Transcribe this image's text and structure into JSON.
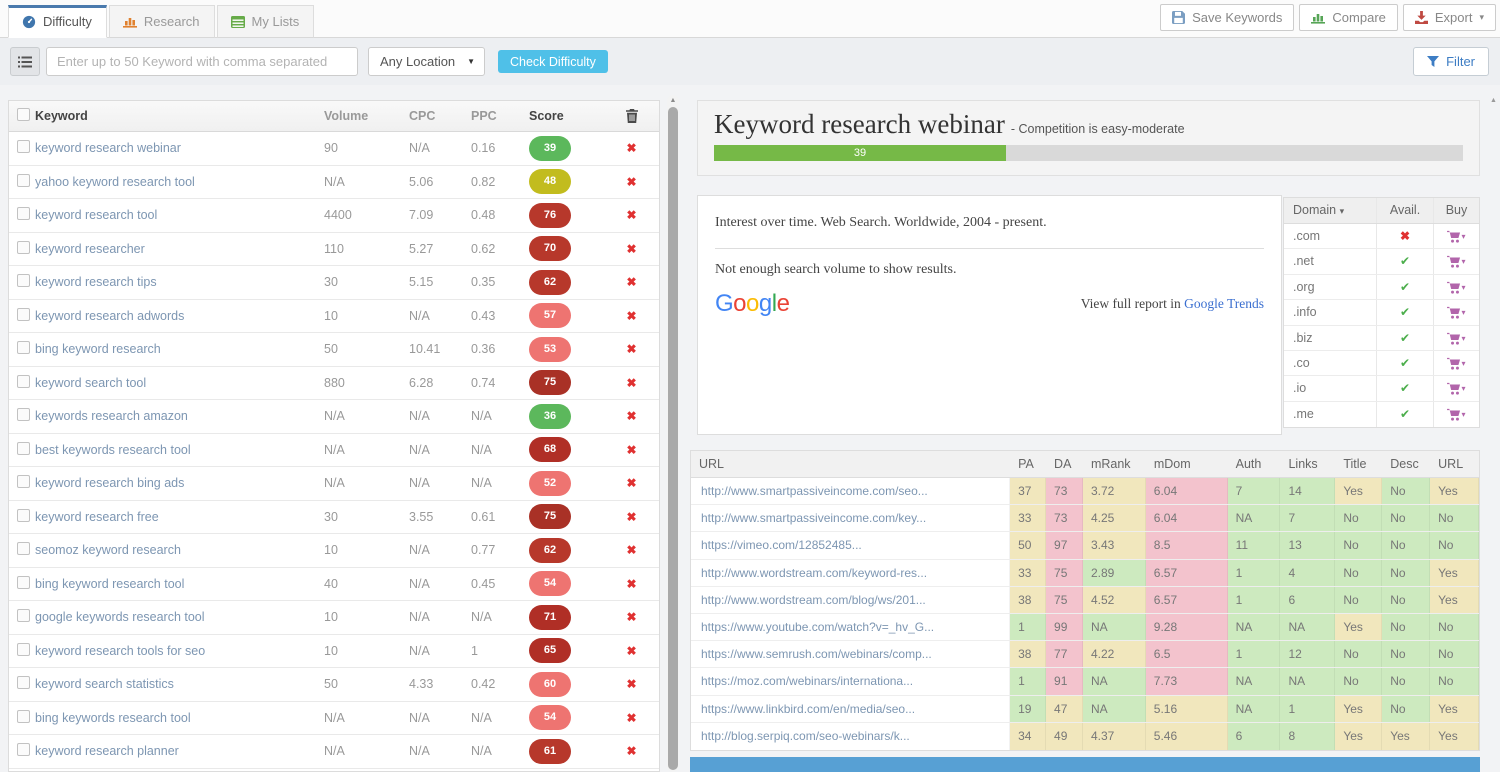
{
  "tabs": [
    {
      "label": "Difficulty",
      "icon": "gauge-icon",
      "active": true
    },
    {
      "label": "Research",
      "icon": "bar-chart-icon",
      "active": false
    },
    {
      "label": "My Lists",
      "icon": "list-icon",
      "active": false
    }
  ],
  "header_actions": {
    "save": "Save Keywords",
    "compare": "Compare",
    "export": "Export",
    "export_caret": "▾"
  },
  "toolbar": {
    "keyword_placeholder": "Enter up to 50 Keyword with comma separated",
    "location": "Any Location",
    "location_caret": "▼",
    "check_button": "Check Difficulty",
    "filter": "Filter"
  },
  "keyword_table": {
    "columns": {
      "keyword": "Keyword",
      "volume": "Volume",
      "cpc": "CPC",
      "ppc": "PPC",
      "score": "Score"
    },
    "rows": [
      {
        "keyword": "keyword research webinar",
        "volume": "90",
        "cpc": "N/A",
        "ppc": "0.16",
        "score": "39",
        "color": "#5cb85c"
      },
      {
        "keyword": "yahoo keyword research tool",
        "volume": "N/A",
        "cpc": "5.06",
        "ppc": "0.82",
        "score": "48",
        "color": "#c2bc1e"
      },
      {
        "keyword": "keyword research tool",
        "volume": "4400",
        "cpc": "7.09",
        "ppc": "0.48",
        "score": "76",
        "color": "#b7382b"
      },
      {
        "keyword": "keyword researcher",
        "volume": "110",
        "cpc": "5.27",
        "ppc": "0.62",
        "score": "70",
        "color": "#b7382b"
      },
      {
        "keyword": "keyword research tips",
        "volume": "30",
        "cpc": "5.15",
        "ppc": "0.35",
        "score": "62",
        "color": "#b7382b"
      },
      {
        "keyword": "keyword research adwords",
        "volume": "10",
        "cpc": "N/A",
        "ppc": "0.43",
        "score": "57",
        "color": "#ee7471"
      },
      {
        "keyword": "bing keyword research",
        "volume": "50",
        "cpc": "10.41",
        "ppc": "0.36",
        "score": "53",
        "color": "#ee7471"
      },
      {
        "keyword": "keyword search tool",
        "volume": "880",
        "cpc": "6.28",
        "ppc": "0.74",
        "score": "75",
        "color": "#a93126"
      },
      {
        "keyword": "keywords research amazon",
        "volume": "N/A",
        "cpc": "N/A",
        "ppc": "N/A",
        "score": "36",
        "color": "#5cb85c"
      },
      {
        "keyword": "best keywords research tool",
        "volume": "N/A",
        "cpc": "N/A",
        "ppc": "N/A",
        "score": "68",
        "color": "#b02f26"
      },
      {
        "keyword": "keyword research bing ads",
        "volume": "N/A",
        "cpc": "N/A",
        "ppc": "N/A",
        "score": "52",
        "color": "#ee7471"
      },
      {
        "keyword": "keyword research free",
        "volume": "30",
        "cpc": "3.55",
        "ppc": "0.61",
        "score": "75",
        "color": "#a93126"
      },
      {
        "keyword": "seomoz keyword research",
        "volume": "10",
        "cpc": "N/A",
        "ppc": "0.77",
        "score": "62",
        "color": "#b7382b"
      },
      {
        "keyword": "bing keyword research tool",
        "volume": "40",
        "cpc": "N/A",
        "ppc": "0.45",
        "score": "54",
        "color": "#ee7471"
      },
      {
        "keyword": "google keywords research tool",
        "volume": "10",
        "cpc": "N/A",
        "ppc": "N/A",
        "score": "71",
        "color": "#b02f26"
      },
      {
        "keyword": "keyword research tools for seo",
        "volume": "10",
        "cpc": "N/A",
        "ppc": "1",
        "score": "65",
        "color": "#b02f26"
      },
      {
        "keyword": "keyword search statistics",
        "volume": "50",
        "cpc": "4.33",
        "ppc": "0.42",
        "score": "60",
        "color": "#ee7471"
      },
      {
        "keyword": "bing keywords research tool",
        "volume": "N/A",
        "cpc": "N/A",
        "ppc": "N/A",
        "score": "54",
        "color": "#ee7471"
      },
      {
        "keyword": "keyword research planner",
        "volume": "N/A",
        "cpc": "N/A",
        "ppc": "N/A",
        "score": "61",
        "color": "#b7382b"
      }
    ]
  },
  "summary": {
    "title": "Keyword research webinar",
    "subtitle": "- Competition is easy-moderate",
    "score_label": "39",
    "bar_fill_percent": 39,
    "bar_color": "#76b947"
  },
  "trends": {
    "heading": "Interest over time. Web Search. Worldwide, 2004 - present.",
    "message": "Not enough search volume to show results.",
    "logo_letters": [
      {
        "ch": "G",
        "color": "#4285F4"
      },
      {
        "ch": "o",
        "color": "#EA4335"
      },
      {
        "ch": "o",
        "color": "#FBBC05"
      },
      {
        "ch": "g",
        "color": "#4285F4"
      },
      {
        "ch": "l",
        "color": "#34A853"
      },
      {
        "ch": "e",
        "color": "#EA4335"
      }
    ],
    "report_prefix": "View full report in",
    "report_link": "Google Trends"
  },
  "domains": {
    "columns": {
      "domain": "Domain",
      "avail": "Avail.",
      "buy": "Buy"
    },
    "sort_caret": "▾",
    "rows": [
      {
        "tld": ".com",
        "available": false
      },
      {
        "tld": ".net",
        "available": true
      },
      {
        "tld": ".org",
        "available": true
      },
      {
        "tld": ".info",
        "available": true
      },
      {
        "tld": ".biz",
        "available": true
      },
      {
        "tld": ".co",
        "available": true
      },
      {
        "tld": ".io",
        "available": true
      },
      {
        "tld": ".me",
        "available": true
      }
    ]
  },
  "url_table": {
    "columns": [
      "URL",
      "PA",
      "DA",
      "mRank",
      "mDom",
      "Auth",
      "Links",
      "Title",
      "Desc",
      "URL"
    ],
    "rows": [
      {
        "url": "http://www.smartpassiveincome.com/seo...",
        "cells": [
          {
            "v": "37",
            "c": "y"
          },
          {
            "v": "73",
            "c": "p"
          },
          {
            "v": "3.72",
            "c": "y"
          },
          {
            "v": "6.04",
            "c": "p"
          },
          {
            "v": "7",
            "c": "g"
          },
          {
            "v": "14",
            "c": "g"
          },
          {
            "v": "Yes",
            "c": "y"
          },
          {
            "v": "No",
            "c": "g"
          },
          {
            "v": "Yes",
            "c": "y"
          }
        ]
      },
      {
        "url": "http://www.smartpassiveincome.com/key...",
        "cells": [
          {
            "v": "33",
            "c": "y"
          },
          {
            "v": "73",
            "c": "p"
          },
          {
            "v": "4.25",
            "c": "y"
          },
          {
            "v": "6.04",
            "c": "p"
          },
          {
            "v": "NA",
            "c": "g"
          },
          {
            "v": "7",
            "c": "g"
          },
          {
            "v": "No",
            "c": "g"
          },
          {
            "v": "No",
            "c": "g"
          },
          {
            "v": "No",
            "c": "g"
          }
        ]
      },
      {
        "url": "https://vimeo.com/12852485...",
        "cells": [
          {
            "v": "50",
            "c": "y"
          },
          {
            "v": "97",
            "c": "p"
          },
          {
            "v": "3.43",
            "c": "y"
          },
          {
            "v": "8.5",
            "c": "p"
          },
          {
            "v": "11",
            "c": "g"
          },
          {
            "v": "13",
            "c": "g"
          },
          {
            "v": "No",
            "c": "g"
          },
          {
            "v": "No",
            "c": "g"
          },
          {
            "v": "No",
            "c": "g"
          }
        ]
      },
      {
        "url": "http://www.wordstream.com/keyword-res...",
        "cells": [
          {
            "v": "33",
            "c": "y"
          },
          {
            "v": "75",
            "c": "p"
          },
          {
            "v": "2.89",
            "c": "g"
          },
          {
            "v": "6.57",
            "c": "p"
          },
          {
            "v": "1",
            "c": "g"
          },
          {
            "v": "4",
            "c": "g"
          },
          {
            "v": "No",
            "c": "g"
          },
          {
            "v": "No",
            "c": "g"
          },
          {
            "v": "Yes",
            "c": "y"
          }
        ]
      },
      {
        "url": "http://www.wordstream.com/blog/ws/201...",
        "cells": [
          {
            "v": "38",
            "c": "y"
          },
          {
            "v": "75",
            "c": "p"
          },
          {
            "v": "4.52",
            "c": "y"
          },
          {
            "v": "6.57",
            "c": "p"
          },
          {
            "v": "1",
            "c": "g"
          },
          {
            "v": "6",
            "c": "g"
          },
          {
            "v": "No",
            "c": "g"
          },
          {
            "v": "No",
            "c": "g"
          },
          {
            "v": "Yes",
            "c": "y"
          }
        ]
      },
      {
        "url": "https://www.youtube.com/watch?v=_hv_G...",
        "cells": [
          {
            "v": "1",
            "c": "g"
          },
          {
            "v": "99",
            "c": "p"
          },
          {
            "v": "NA",
            "c": "g"
          },
          {
            "v": "9.28",
            "c": "p"
          },
          {
            "v": "NA",
            "c": "g"
          },
          {
            "v": "NA",
            "c": "g"
          },
          {
            "v": "Yes",
            "c": "y"
          },
          {
            "v": "No",
            "c": "g"
          },
          {
            "v": "No",
            "c": "g"
          }
        ]
      },
      {
        "url": "https://www.semrush.com/webinars/comp...",
        "cells": [
          {
            "v": "38",
            "c": "y"
          },
          {
            "v": "77",
            "c": "p"
          },
          {
            "v": "4.22",
            "c": "y"
          },
          {
            "v": "6.5",
            "c": "p"
          },
          {
            "v": "1",
            "c": "g"
          },
          {
            "v": "12",
            "c": "g"
          },
          {
            "v": "No",
            "c": "g"
          },
          {
            "v": "No",
            "c": "g"
          },
          {
            "v": "No",
            "c": "g"
          }
        ]
      },
      {
        "url": "https://moz.com/webinars/internationa...",
        "cells": [
          {
            "v": "1",
            "c": "g"
          },
          {
            "v": "91",
            "c": "p"
          },
          {
            "v": "NA",
            "c": "g"
          },
          {
            "v": "7.73",
            "c": "p"
          },
          {
            "v": "NA",
            "c": "g"
          },
          {
            "v": "NA",
            "c": "g"
          },
          {
            "v": "No",
            "c": "g"
          },
          {
            "v": "No",
            "c": "g"
          },
          {
            "v": "No",
            "c": "g"
          }
        ]
      },
      {
        "url": "https://www.linkbird.com/en/media/seo...",
        "cells": [
          {
            "v": "19",
            "c": "g"
          },
          {
            "v": "47",
            "c": "y"
          },
          {
            "v": "NA",
            "c": "g"
          },
          {
            "v": "5.16",
            "c": "y"
          },
          {
            "v": "NA",
            "c": "g"
          },
          {
            "v": "1",
            "c": "g"
          },
          {
            "v": "Yes",
            "c": "y"
          },
          {
            "v": "No",
            "c": "g"
          },
          {
            "v": "Yes",
            "c": "y"
          }
        ]
      },
      {
        "url": "http://blog.serpiq.com/seo-webinars/k...",
        "cells": [
          {
            "v": "34",
            "c": "y"
          },
          {
            "v": "49",
            "c": "y"
          },
          {
            "v": "4.37",
            "c": "y"
          },
          {
            "v": "5.46",
            "c": "y"
          },
          {
            "v": "6",
            "c": "g"
          },
          {
            "v": "8",
            "c": "g"
          },
          {
            "v": "Yes",
            "c": "y"
          },
          {
            "v": "Yes",
            "c": "y"
          },
          {
            "v": "Yes",
            "c": "y"
          }
        ]
      }
    ]
  }
}
